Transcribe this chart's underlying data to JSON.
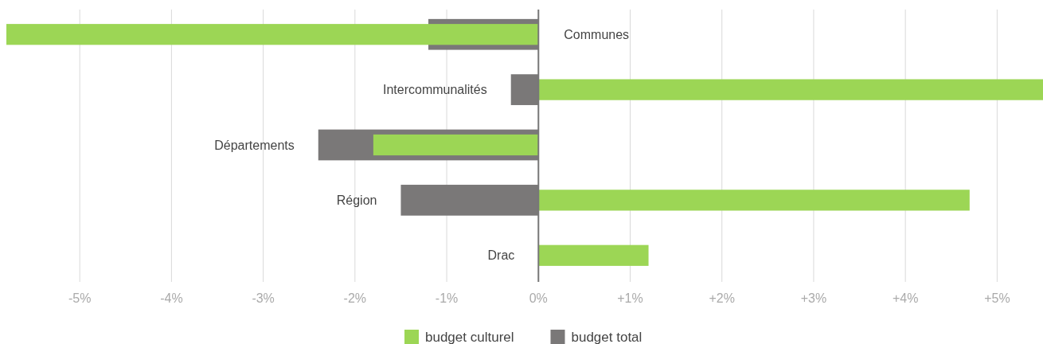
{
  "chart_data": {
    "type": "bar",
    "orientation": "horizontal",
    "categories": [
      "Communes",
      "Intercommunalités",
      "Départements",
      "Région",
      "Drac"
    ],
    "series": [
      {
        "name": "budget total",
        "color": "#7a7878",
        "values": [
          -1.2,
          -0.3,
          -2.4,
          -1.5,
          null
        ]
      },
      {
        "name": "budget culturel",
        "color": "#9cd655",
        "values": [
          -5.8,
          5.5,
          -1.8,
          4.7,
          1.2
        ]
      }
    ],
    "xlim": [
      -5.8,
      5.5
    ],
    "xticks": [
      {
        "value": -5,
        "label": "-5%"
      },
      {
        "value": -4,
        "label": "-4%"
      },
      {
        "value": -3,
        "label": "-3%"
      },
      {
        "value": -2,
        "label": "-2%"
      },
      {
        "value": -1,
        "label": "-1%"
      },
      {
        "value": 0,
        "label": "0%"
      },
      {
        "value": 1,
        "label": "+1%"
      },
      {
        "value": 2,
        "label": "+2%"
      },
      {
        "value": 3,
        "label": "+3%"
      },
      {
        "value": 4,
        "label": "+4%"
      },
      {
        "value": 5,
        "label": "+5%"
      }
    ],
    "grid": "x",
    "legend": "bottom"
  }
}
